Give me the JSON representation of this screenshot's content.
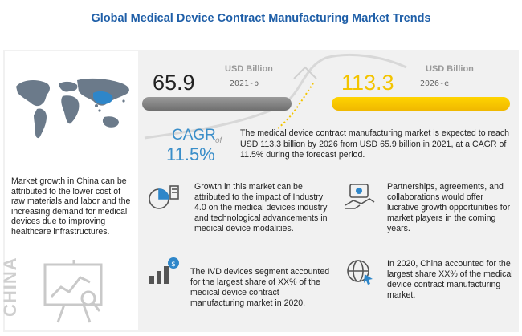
{
  "header": {
    "title": "Global Medical Device Contract Manufacturing Market Trends"
  },
  "market": {
    "start": {
      "value": "65.9",
      "unit": "USD Billion",
      "year": "2021-p"
    },
    "end": {
      "value": "113.3",
      "unit": "USD Billion",
      "year": "2026-e"
    }
  },
  "cagr": {
    "label": "CAGR",
    "of_word": "of",
    "value": "11.5%",
    "description": "The medical device contract manufacturing market is expected to reach USD 113.3 billion by 2026 from USD 65.9 billion in 2021, at a CAGR of 11.5% during the forecast period."
  },
  "china": {
    "label": "CHINA",
    "description": "Market growth in China can be attributed to the lower cost of raw materials and labor and the increasing demand for medical devices due to improving healthcare infrastructures."
  },
  "cards": [
    {
      "icon": "growth-pie-chart-icon",
      "text": "Growth in this market can be attributed to the impact of Industry 4.0 on the medical devices industry and technological advancements in medical device modalities."
    },
    {
      "icon": "partnership-handshake-icon",
      "text": "Partnerships, agreements, and collaborations would offer lucrative growth opportunities for market players in the coming years."
    },
    {
      "icon": "bar-chart-dollar-icon",
      "text": "The IVD devices segment accounted for the largest share of XX% of the medical device contract manufacturing market in 2020."
    },
    {
      "icon": "globe-cursor-icon",
      "text": "In 2020, China accounted for the largest share XX% of the medical device contract manufacturing market."
    }
  ],
  "colors": {
    "title_blue": "#1f5fa8",
    "cagr_blue": "#3a8ec9",
    "accent_yellow": "#f3c400",
    "bar_gray": "#7a7a7a"
  }
}
